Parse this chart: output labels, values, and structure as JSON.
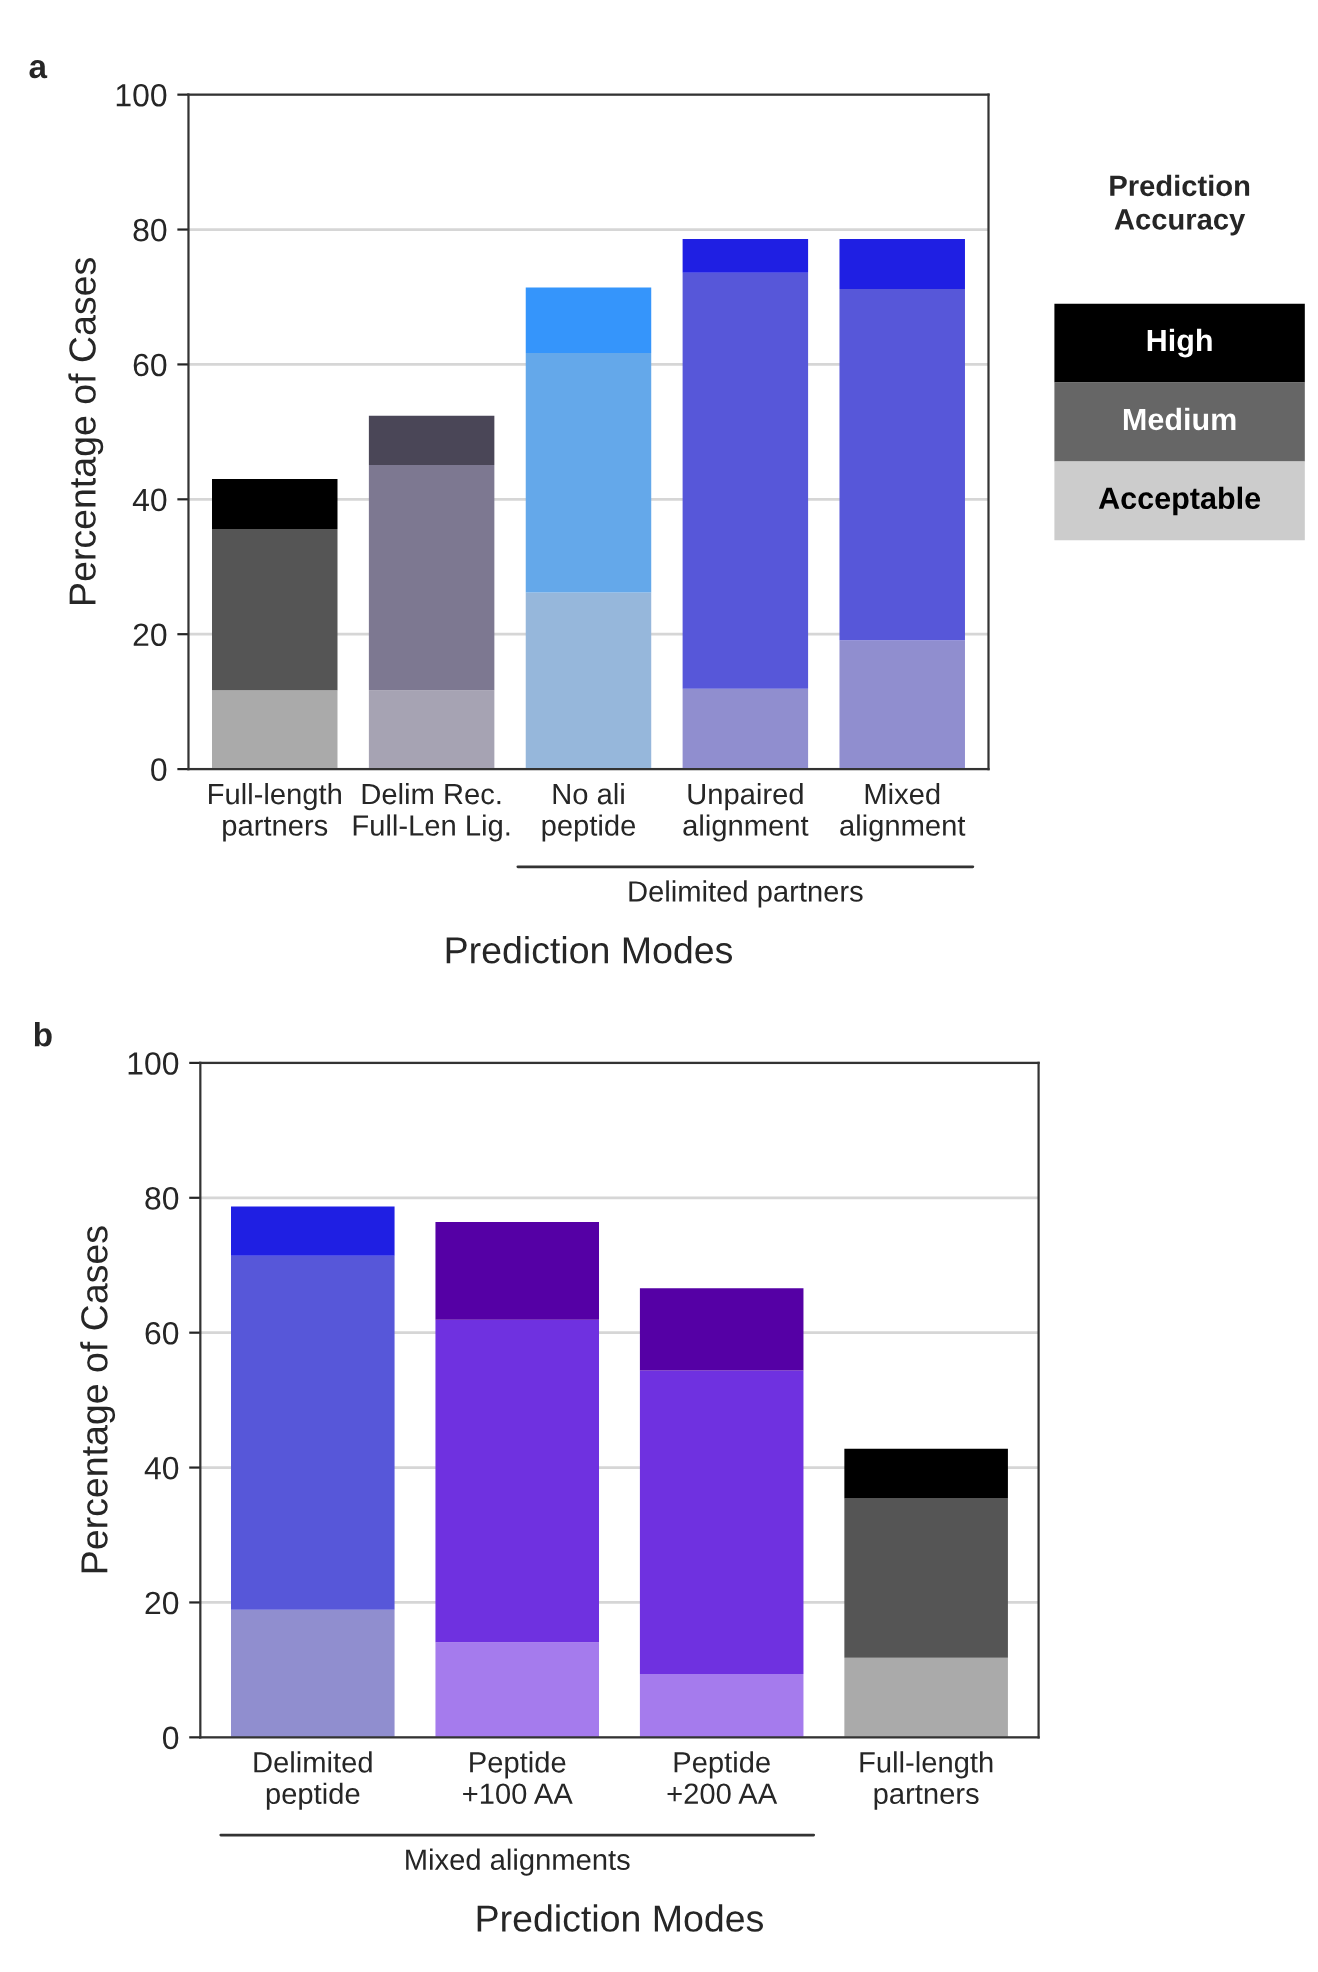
{
  "chart_data": [
    {
      "type": "bar",
      "title": "a",
      "stacked": true,
      "xlabel": "Prediction Modes",
      "ylabel": "Percentage of Cases",
      "categories": [
        "Full-length\npartners",
        "Delim Rec.\nFull-Len Lig.",
        "No ali\npeptide",
        "Unpaired\nalignment",
        "Mixed\nalignment"
      ],
      "series": [
        {
          "name": "Acceptable",
          "color": "#cccccc",
          "values": [
            11.7,
            11.7,
            26.2,
            11.9,
            19.1
          ],
          "colors": [
            "#aaaaaa",
            "#a6a3b3",
            "#96b7db",
            "#908ecf",
            "#908ecf"
          ]
        },
        {
          "name": "Medium",
          "color": "#666666",
          "values": [
            23.9,
            33.4,
            35.5,
            61.7,
            52.1
          ],
          "colors": [
            "#555555",
            "#7d7891",
            "#64a8ea",
            "#5757d9",
            "#5757d9"
          ]
        },
        {
          "name": "High",
          "color": "#000000",
          "values": [
            7.4,
            7.3,
            9.7,
            5.0,
            7.4
          ],
          "colors": [
            "#000000",
            "#4a4657",
            "#3595fb",
            "#1f1fe3",
            "#1f1fe3"
          ]
        }
      ],
      "ylim": [
        0,
        100
      ],
      "yticks": [
        0,
        20,
        40,
        60,
        80,
        100
      ],
      "grid": "y",
      "legend": "right",
      "legend_title": "Prediction Accuracy",
      "annotations": [
        "Delimited partners"
      ]
    },
    {
      "type": "bar",
      "title": "b",
      "stacked": true,
      "xlabel": "Prediction Modes",
      "ylabel": "Percentage of Cases",
      "categories": [
        "Delimited\npeptide",
        "Peptide\n+100 AA",
        "Peptide\n+200 AA",
        "Full-length\npartners"
      ],
      "series": [
        {
          "values": [
            18.9,
            14.1,
            9.4,
            11.8
          ],
          "colors": [
            "#908ecf",
            "#a57bed",
            "#a57bed",
            "#aaaaaa"
          ]
        },
        {
          "values": [
            52.5,
            47.8,
            45.0,
            23.6
          ],
          "colors": [
            "#5757d9",
            "#6f31e0",
            "#6f31e0",
            "#555555"
          ]
        },
        {
          "values": [
            7.3,
            14.5,
            12.2,
            7.4
          ],
          "colors": [
            "#1f1fe3",
            "#5500a5",
            "#5500a5",
            "#000000"
          ]
        }
      ],
      "ylim": [
        0,
        100
      ],
      "yticks": [
        0,
        20,
        40,
        60,
        80,
        100
      ],
      "grid": "y",
      "annotations": [
        "Mixed alignments"
      ]
    }
  ]
}
